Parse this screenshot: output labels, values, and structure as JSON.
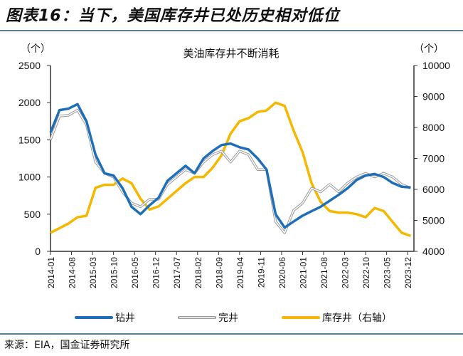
{
  "figure_title": "图表16：当下，美国库存井已处历史相对低位",
  "source": "来源：EIA，国金证券研究所",
  "chart_data": {
    "type": "line",
    "title": "美油库存井不断消耗",
    "y_left": {
      "unit_label": "（个）",
      "range": [
        0,
        2500
      ],
      "ticks": [
        0,
        500,
        1000,
        1500,
        2000,
        2500
      ]
    },
    "y_right": {
      "unit_label": "（个）",
      "range": [
        4000,
        10000
      ],
      "ticks": [
        4000,
        5000,
        6000,
        7000,
        8000,
        9000,
        10000
      ]
    },
    "x_tick_labels": [
      "2014-01",
      "2014-08",
      "2015-03",
      "2015-10",
      "2016-05",
      "2016-12",
      "2017-07",
      "2018-02",
      "2018-09",
      "2019-04",
      "2019-11",
      "2020-06",
      "2021-01",
      "2021-08",
      "2022-03",
      "2022-10",
      "2023-05",
      "2023-12"
    ],
    "grid": false,
    "legend_position": "bottom",
    "x": [
      "2014-01",
      "2014-04",
      "2014-07",
      "2014-10",
      "2015-01",
      "2015-04",
      "2015-07",
      "2015-10",
      "2016-01",
      "2016-04",
      "2016-07",
      "2016-10",
      "2017-01",
      "2017-04",
      "2017-07",
      "2017-10",
      "2018-01",
      "2018-04",
      "2018-07",
      "2018-10",
      "2019-01",
      "2019-04",
      "2019-07",
      "2019-10",
      "2020-01",
      "2020-04",
      "2020-07",
      "2020-10",
      "2021-01",
      "2021-04",
      "2021-07",
      "2021-10",
      "2022-01",
      "2022-04",
      "2022-07",
      "2022-10",
      "2023-01",
      "2023-04",
      "2023-07",
      "2023-10",
      "2024-01"
    ],
    "series": [
      {
        "name": "钻井",
        "axis": "left",
        "color": "#1f6fb8",
        "values": [
          1600,
          1900,
          1920,
          1980,
          1750,
          1300,
          1050,
          1020,
          850,
          600,
          500,
          620,
          720,
          950,
          1050,
          1150,
          1050,
          1250,
          1350,
          1430,
          1450,
          1400,
          1370,
          1250,
          1100,
          500,
          320,
          400,
          480,
          540,
          600,
          680,
          760,
          850,
          960,
          1020,
          1040,
          1000,
          920,
          870,
          860
        ]
      },
      {
        "name": "完井",
        "axis": "left",
        "color": "#bfbfbf",
        "values": [
          1500,
          1820,
          1830,
          1900,
          1700,
          1200,
          1050,
          1000,
          800,
          650,
          600,
          700,
          700,
          900,
          1000,
          1100,
          1050,
          1200,
          1300,
          1350,
          1200,
          1350,
          1300,
          1100,
          1100,
          400,
          250,
          550,
          650,
          850,
          800,
          900,
          800,
          920,
          1000,
          1050,
          1000,
          1050,
          1000,
          900,
          850
        ]
      },
      {
        "name": "库存井（右轴）",
        "axis": "right",
        "color": "#f5b800",
        "values": [
          4600,
          4750,
          4900,
          5100,
          5150,
          6050,
          6150,
          6150,
          6350,
          6200,
          5700,
          5350,
          5450,
          5700,
          5950,
          6200,
          6400,
          6400,
          6700,
          7100,
          7800,
          8200,
          8300,
          8500,
          8550,
          8800,
          8700,
          7900,
          7200,
          6200,
          5600,
          5300,
          5250,
          5250,
          5200,
          5100,
          5400,
          5300,
          4950,
          4600,
          4500
        ]
      }
    ]
  }
}
